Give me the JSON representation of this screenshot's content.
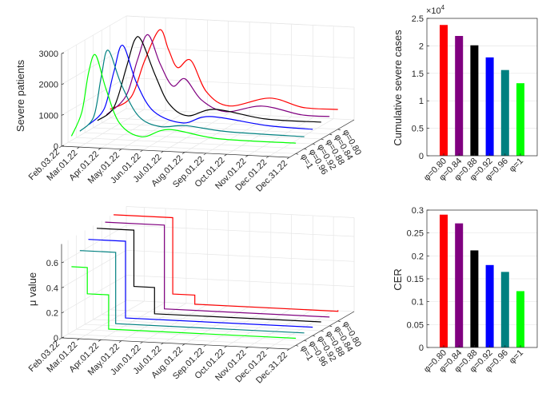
{
  "chart_data": [
    {
      "type": "line",
      "projection": "3d",
      "zlabel": "Severe patients",
      "zlim": [
        0,
        3000
      ],
      "z_ticks": [
        0,
        1000,
        2000,
        3000
      ],
      "z_tick_labels": [
        "0",
        "1000",
        "2000",
        "3000"
      ],
      "x_ticks": [
        "2022-02-03",
        "2022-03-01",
        "2022-04-01",
        "2022-05-01",
        "2022-06-01",
        "2022-07-01",
        "2022-08-01",
        "2022-09-01",
        "2022-10-01",
        "2022-11-01",
        "2022-12-01",
        "2022-12-31"
      ],
      "x_tick_labels": [
        "Feb.03.22",
        "Mar.01.22",
        "Apr.01.22",
        "May.01.22",
        "Jun.01.22",
        "Jul.01.22",
        "Aug.01.22",
        "Sep.01.22",
        "Oct.01.22",
        "Nov.01.22",
        "Dec.01.22",
        "Dec.31.22"
      ],
      "y_tick_labels": [
        "φ=1",
        "φ=0.96",
        "φ=0.92",
        "φ=0.88",
        "φ=0.84",
        "φ=0.80"
      ],
      "grid": true,
      "series": [
        {
          "phi": 0.8,
          "color": "#ff0000",
          "points": [
            [
              "2022-02-03",
              286
            ],
            [
              "2022-03-05",
              700
            ],
            [
              "2022-03-25",
              1900
            ],
            [
              "2022-04-16",
              2935
            ],
            [
              "2022-04-29",
              2300
            ],
            [
              "2022-05-12",
              1740
            ],
            [
              "2022-05-31",
              2000
            ],
            [
              "2022-06-23",
              1000
            ],
            [
              "2022-07-26",
              580
            ],
            [
              "2022-09-23",
              900
            ],
            [
              "2022-11-10",
              650
            ],
            [
              "2022-12-31",
              640
            ]
          ]
        },
        {
          "phi": 0.84,
          "color": "#800080",
          "points": [
            [
              "2022-02-10",
              270
            ],
            [
              "2022-03-10",
              900
            ],
            [
              "2022-03-27",
              2100
            ],
            [
              "2022-04-11",
              2930
            ],
            [
              "2022-04-29",
              2000
            ],
            [
              "2022-05-17",
              1310
            ],
            [
              "2022-06-04",
              1560
            ],
            [
              "2022-06-28",
              900
            ],
            [
              "2022-08-02",
              560
            ],
            [
              "2022-09-24",
              800
            ],
            [
              "2022-11-20",
              580
            ],
            [
              "2022-12-31",
              570
            ]
          ]
        },
        {
          "phi": 0.88,
          "color": "#000000",
          "points": [
            [
              "2022-02-09",
              240
            ],
            [
              "2022-03-05",
              700
            ],
            [
              "2022-03-23",
              2000
            ],
            [
              "2022-04-04",
              2900
            ],
            [
              "2022-04-14",
              2900
            ],
            [
              "2022-05-04",
              1800
            ],
            [
              "2022-05-24",
              900
            ],
            [
              "2022-06-20",
              540
            ],
            [
              "2022-07-30",
              790
            ],
            [
              "2022-10-11",
              560
            ],
            [
              "2022-12-31",
              545
            ]
          ]
        },
        {
          "phi": 0.92,
          "color": "#0000ff",
          "points": [
            [
              "2022-02-09",
              270
            ],
            [
              "2022-03-03",
              800
            ],
            [
              "2022-03-17",
              2000
            ],
            [
              "2022-03-30",
              2890
            ],
            [
              "2022-04-19",
              1700
            ],
            [
              "2022-05-14",
              800
            ],
            [
              "2022-06-25",
              470
            ],
            [
              "2022-08-04",
              720
            ],
            [
              "2022-10-25",
              520
            ],
            [
              "2022-12-31",
              470
            ]
          ]
        },
        {
          "phi": 0.96,
          "color": "#008080",
          "points": [
            [
              "2022-02-08",
              210
            ],
            [
              "2022-02-28",
              700
            ],
            [
              "2022-03-11",
              2000
            ],
            [
              "2022-03-21",
              2880
            ],
            [
              "2022-04-09",
              1800
            ],
            [
              "2022-05-04",
              800
            ],
            [
              "2022-06-04",
              490
            ],
            [
              "2022-07-12",
              560
            ],
            [
              "2022-09-11",
              430
            ],
            [
              "2022-12-31",
              390
            ]
          ]
        },
        {
          "phi": 1.0,
          "color": "#00ff00",
          "points": [
            [
              "2022-02-08",
              210
            ],
            [
              "2022-02-23",
              1000
            ],
            [
              "2022-03-05",
              2300
            ],
            [
              "2022-03-15",
              2875
            ],
            [
              "2022-03-30",
              1800
            ],
            [
              "2022-04-19",
              700
            ],
            [
              "2022-05-21",
              300
            ],
            [
              "2022-06-30",
              580
            ],
            [
              "2022-09-09",
              360
            ],
            [
              "2022-12-31",
              340
            ]
          ]
        }
      ]
    },
    {
      "type": "line",
      "projection": "3d",
      "step": true,
      "zlabel": "μ value",
      "zlim": [
        0,
        0.75
      ],
      "z_ticks": [
        0,
        0.2,
        0.4,
        0.6
      ],
      "z_tick_labels": [
        "0",
        "0.2",
        "0.4",
        "0.6"
      ],
      "x_ticks": [
        "2022-02-03",
        "2022-03-01",
        "2022-04-01",
        "2022-05-01",
        "2022-06-01",
        "2022-07-01",
        "2022-08-01",
        "2022-09-01",
        "2022-10-01",
        "2022-11-01",
        "2022-12-01",
        "2022-12-31"
      ],
      "x_tick_labels": [
        "Feb.03.22",
        "Mar.01.22",
        "Apr.01.22",
        "May.01.22",
        "Jun.01.22",
        "Jul.01.22",
        "Aug.01.22",
        "Sep.01.22",
        "Oct.01.22",
        "Nov.01.22",
        "Dec.01.22",
        "Dec.31.22"
      ],
      "y_tick_labels": [
        "φ=1",
        "φ=0.96",
        "φ=0.92",
        "φ=0.88",
        "φ=0.84",
        "φ=0.80"
      ],
      "grid": true,
      "series": [
        {
          "phi": 0.8,
          "color": "#ff0000",
          "points": [
            [
              "2022-02-08",
              0.76
            ],
            [
              "2022-05-05",
              0.15
            ],
            [
              "2022-06-06",
              0.077
            ],
            [
              "2022-12-31",
              0.085
            ]
          ]
        },
        {
          "phi": 0.84,
          "color": "#800080",
          "points": [
            [
              "2022-02-08",
              0.74
            ],
            [
              "2022-05-05",
              0.07
            ],
            [
              "2022-12-31",
              0.07
            ]
          ]
        },
        {
          "phi": 0.88,
          "color": "#000000",
          "points": [
            [
              "2022-02-08",
              0.73
            ],
            [
              "2022-04-03",
              0.28
            ],
            [
              "2022-05-03",
              0.07
            ],
            [
              "2022-12-31",
              0.07
            ]
          ]
        },
        {
          "phi": 0.92,
          "color": "#0000ff",
          "points": [
            [
              "2022-02-08",
              0.68
            ],
            [
              "2022-04-03",
              0.067
            ],
            [
              "2022-12-31",
              0.067
            ]
          ]
        },
        {
          "phi": 0.96,
          "color": "#008080",
          "points": [
            [
              "2022-02-08",
              0.63
            ],
            [
              "2022-04-01",
              0.06
            ],
            [
              "2022-12-31",
              0.06
            ]
          ]
        },
        {
          "phi": 1.0,
          "color": "#00ff00",
          "points": [
            [
              "2022-02-08",
              0.54
            ],
            [
              "2022-03-03",
              0.33
            ],
            [
              "2022-04-03",
              0.056
            ],
            [
              "2022-12-31",
              0.056
            ]
          ]
        }
      ]
    },
    {
      "type": "bar",
      "ylabel": "Cumulative severe cases",
      "multiplier": "×10",
      "multiplier_exp": "4",
      "ylim": [
        0,
        2.5
      ],
      "y_ticks": [
        0,
        0.5,
        1,
        1.5,
        2,
        2.5
      ],
      "y_tick_labels": [
        "0",
        "0.5",
        "1",
        "1.5",
        "2",
        "2.5"
      ],
      "categories": [
        "φ=0.80",
        "φ=0.84",
        "φ=0.88",
        "φ=0.92",
        "φ=0.96",
        "φ=1"
      ],
      "values": [
        2.38,
        2.18,
        2.01,
        1.79,
        1.56,
        1.32
      ],
      "colors": [
        "#ff0000",
        "#800080",
        "#000000",
        "#0000ff",
        "#008080",
        "#00ff00"
      ],
      "grid": true
    },
    {
      "type": "bar",
      "ylabel": "CER",
      "ylim": [
        0,
        0.3
      ],
      "y_ticks": [
        0,
        0.05,
        0.1,
        0.15,
        0.2,
        0.25,
        0.3
      ],
      "y_tick_labels": [
        "0",
        "0.05",
        "0.1",
        "0.15",
        "0.2",
        "0.25",
        "0.3"
      ],
      "categories": [
        "φ=0.80",
        "φ=0.84",
        "φ=0.88",
        "φ=0.92",
        "φ=0.96",
        "φ=1"
      ],
      "values": [
        0.29,
        0.271,
        0.212,
        0.18,
        0.165,
        0.123
      ],
      "colors": [
        "#ff0000",
        "#800080",
        "#000000",
        "#0000ff",
        "#008080",
        "#00ff00"
      ],
      "grid": true
    }
  ]
}
